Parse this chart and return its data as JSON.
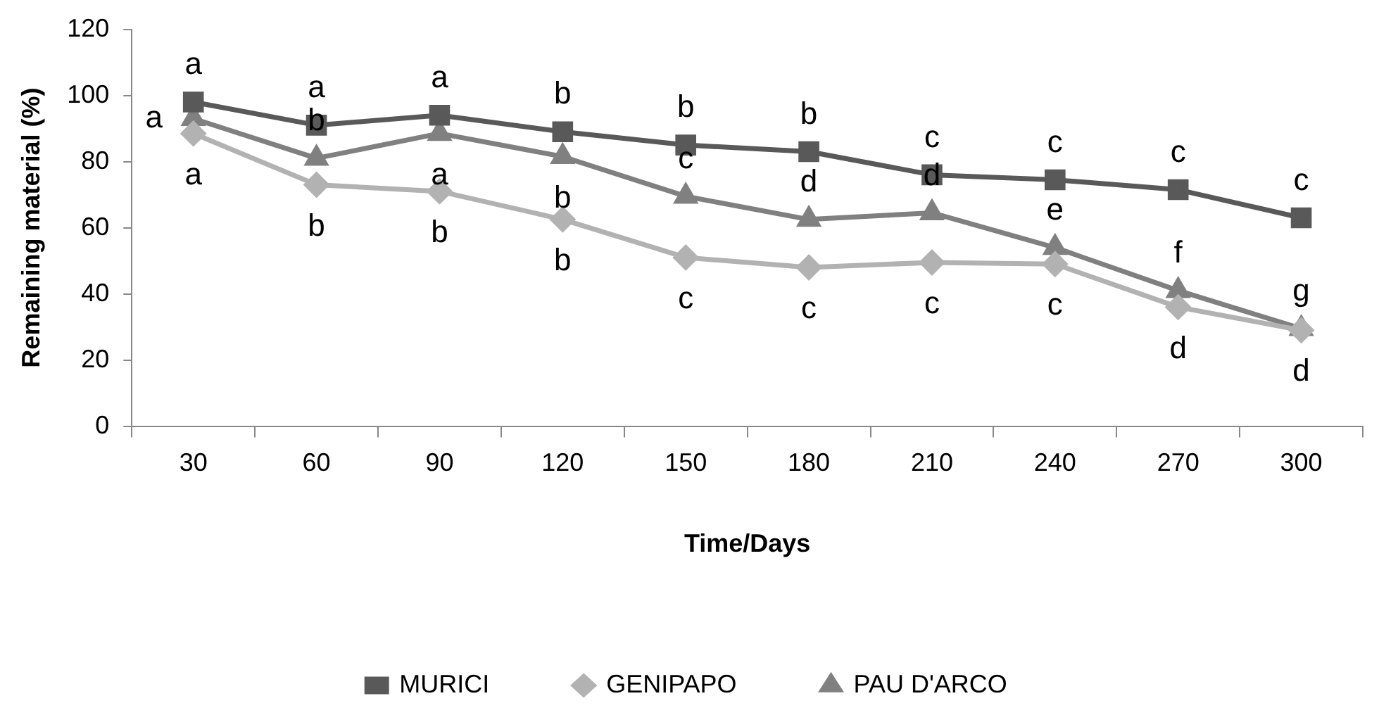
{
  "chart_data": {
    "type": "line",
    "xlabel": "Time/Days",
    "ylabel": "Remaining material (%)",
    "categories": [
      "30",
      "60",
      "90",
      "120",
      "150",
      "180",
      "210",
      "240",
      "270",
      "300"
    ],
    "series": [
      {
        "name": "MURICI",
        "color": "#595959",
        "marker": "square",
        "values": [
          98,
          91,
          94,
          89,
          85,
          83,
          76,
          74.5,
          71.5,
          63
        ]
      },
      {
        "name": "GENIPAPO",
        "color": "#b2b2b2",
        "marker": "diamond",
        "values": [
          88.5,
          73,
          71,
          62.5,
          51,
          48,
          49.5,
          49,
          36,
          29
        ]
      },
      {
        "name": "PAU D'ARCO",
        "color": "#808080",
        "marker": "triangle",
        "values": [
          93,
          81,
          88.5,
          81.5,
          69.5,
          62.5,
          64.5,
          54,
          41,
          29.5
        ]
      }
    ],
    "ylim": [
      0,
      120
    ],
    "yticks": [
      0,
      20,
      40,
      60,
      80,
      100,
      120
    ],
    "grid": false,
    "legend": "bottom",
    "line_style": "solid",
    "annotations": [
      {
        "text": "a",
        "x": "30",
        "y": 98
      },
      {
        "text": "a",
        "x": "60",
        "y": 91
      },
      {
        "text": "a",
        "x": "90",
        "y": 94
      },
      {
        "text": "b",
        "x": "120",
        "y": 89
      },
      {
        "text": "b",
        "x": "150",
        "y": 85
      },
      {
        "text": "b",
        "x": "180",
        "y": 83
      },
      {
        "text": "c",
        "x": "210",
        "y": 76
      },
      {
        "text": "c",
        "x": "240",
        "y": 74.5
      },
      {
        "text": "c",
        "x": "270",
        "y": 71.5
      },
      {
        "text": "c",
        "x": "300",
        "y": 63
      },
      {
        "text": "a",
        "x": "30",
        "y": 88.5
      },
      {
        "text": "b",
        "x": "60",
        "y": 73
      },
      {
        "text": "b",
        "x": "90",
        "y": 71
      },
      {
        "text": "b",
        "x": "120",
        "y": 62.5
      },
      {
        "text": "c",
        "x": "150",
        "y": 51
      },
      {
        "text": "c",
        "x": "180",
        "y": 48
      },
      {
        "text": "c",
        "x": "210",
        "y": 49.5
      },
      {
        "text": "c",
        "x": "240",
        "y": 49
      },
      {
        "text": "d",
        "x": "270",
        "y": 36
      },
      {
        "text": "d",
        "x": "300",
        "y": 29
      },
      {
        "text": "a",
        "x": "30",
        "y": 93
      },
      {
        "text": "b",
        "x": "60",
        "y": 81
      },
      {
        "text": "a",
        "x": "90",
        "y": 88.5
      },
      {
        "text": "b",
        "x": "120",
        "y": 81.5
      },
      {
        "text": "c",
        "x": "150",
        "y": 69.5
      },
      {
        "text": "d",
        "x": "180",
        "y": 62.5
      },
      {
        "text": "d",
        "x": "210",
        "y": 64.5
      },
      {
        "text": "e",
        "x": "240",
        "y": 54
      },
      {
        "text": "f",
        "x": "270",
        "y": 41
      },
      {
        "text": "g",
        "x": "300",
        "y": 29.5
      }
    ]
  }
}
